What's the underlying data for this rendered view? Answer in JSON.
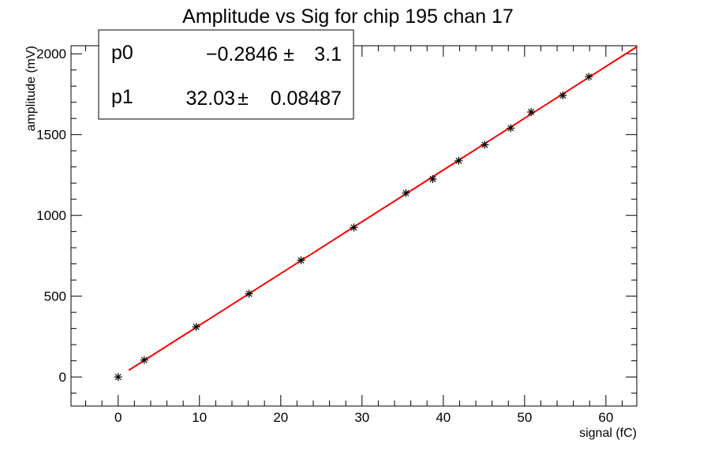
{
  "chart_data": {
    "type": "scatter",
    "title": "Amplitude vs Sig for chip 195 chan 17",
    "xlabel": "signal (fC)",
    "ylabel": "amplitude (mV)",
    "xlim": [
      -5.8,
      63.8
    ],
    "ylim": [
      -180,
      2050
    ],
    "x_ticks": [
      0,
      10,
      20,
      30,
      40,
      50,
      60
    ],
    "x_tick_labels": [
      "0",
      "10",
      "20",
      "30",
      "40",
      "50",
      "60"
    ],
    "y_ticks": [
      0,
      500,
      1000,
      1500,
      2000
    ],
    "y_tick_labels": [
      "0",
      "500",
      "1000",
      "1500",
      "2000"
    ],
    "grid": false,
    "series": [
      {
        "type": "scatter",
        "marker": "asterisk",
        "color": "#000000",
        "points": [
          {
            "x": 0.0,
            "y": 0
          },
          {
            "x": 3.2,
            "y": 105
          },
          {
            "x": 9.6,
            "y": 310
          },
          {
            "x": 16.1,
            "y": 515
          },
          {
            "x": 22.5,
            "y": 722
          },
          {
            "x": 29.0,
            "y": 925
          },
          {
            "x": 35.4,
            "y": 1138
          },
          {
            "x": 38.7,
            "y": 1225
          },
          {
            "x": 41.9,
            "y": 1338
          },
          {
            "x": 45.1,
            "y": 1437
          },
          {
            "x": 48.3,
            "y": 1540
          },
          {
            "x": 50.8,
            "y": 1640
          },
          {
            "x": 54.7,
            "y": 1742
          },
          {
            "x": 57.9,
            "y": 1858
          }
        ]
      },
      {
        "type": "line",
        "color": "#ff0000",
        "fit": {
          "p0": -0.2846,
          "p1": 32.03
        },
        "x_range": [
          1.3,
          63.8
        ]
      }
    ],
    "stats_box": {
      "position": "top-left",
      "rows": [
        {
          "name": "p0",
          "value": "−0.2846",
          "pm": "±",
          "error": "3.1"
        },
        {
          "name": "p1",
          "value": "32.03",
          "pm": "±",
          "error": "0.08487"
        }
      ]
    }
  }
}
